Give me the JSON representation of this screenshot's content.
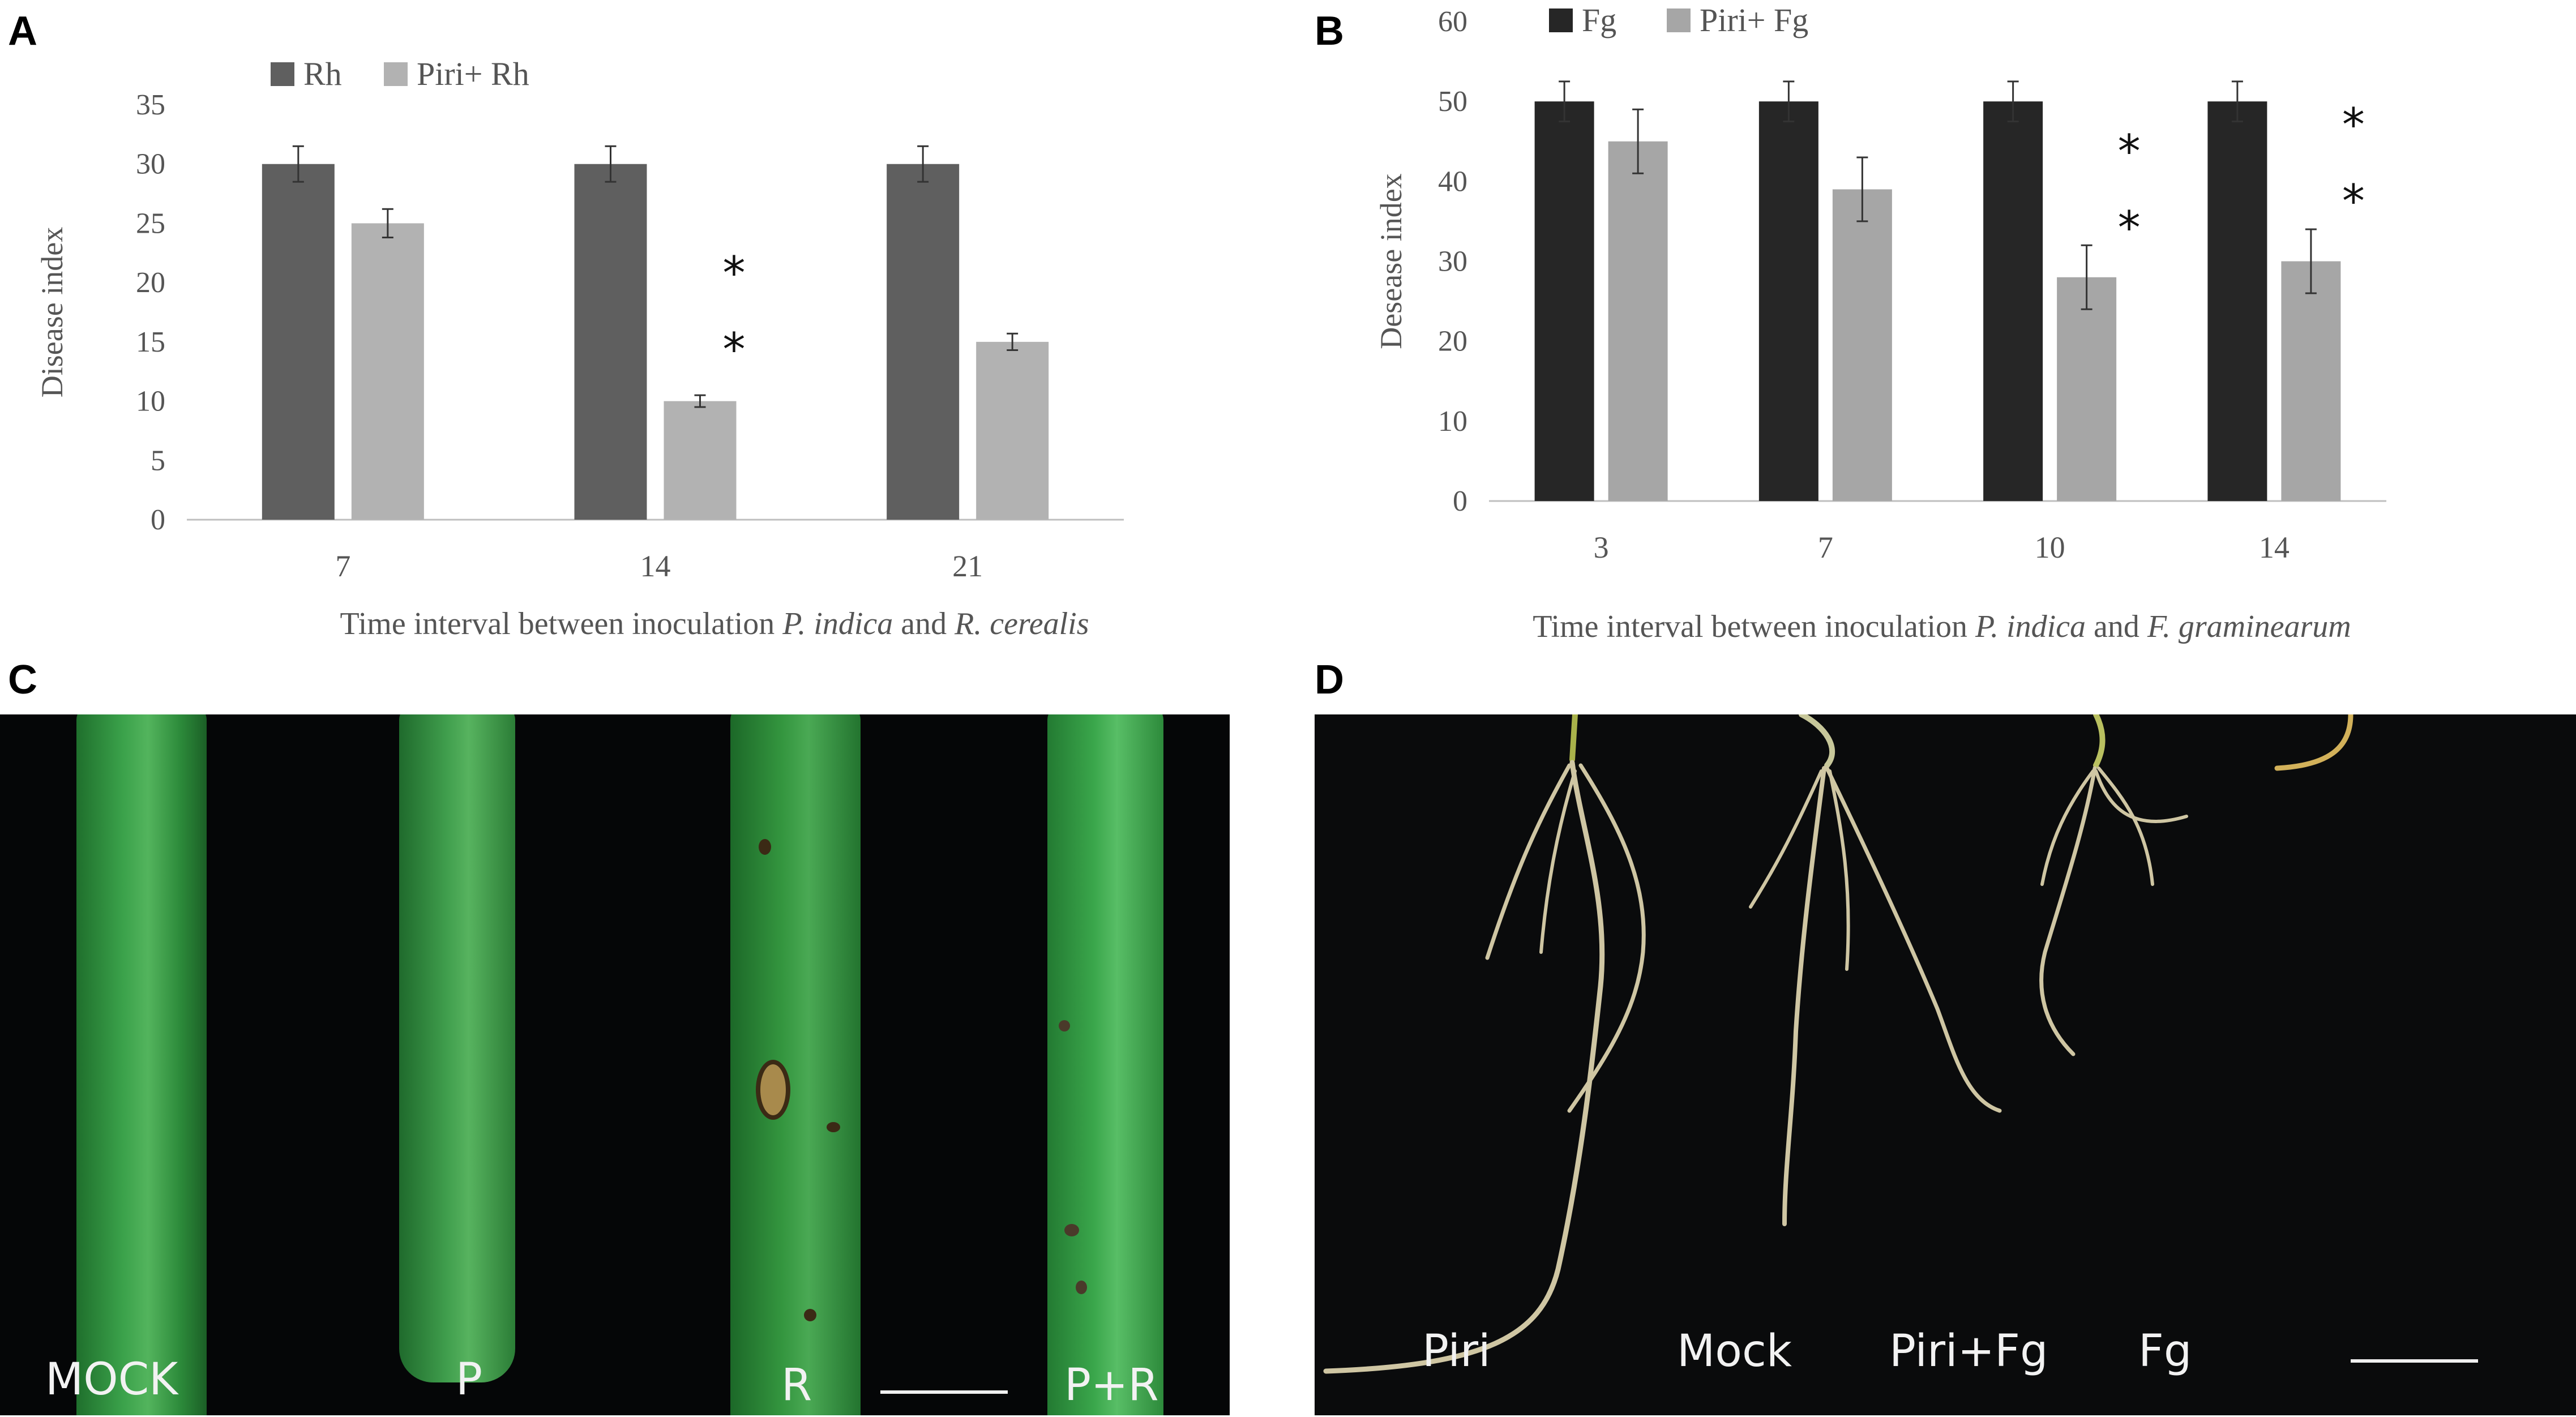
{
  "figure": {
    "panel_letters": [
      "A",
      "B",
      "C",
      "D"
    ],
    "colors": {
      "rh": "#5f5f5f",
      "piri_rh": "#b2b2b2",
      "fg": "#262626",
      "piri_fg": "#a6a6a6",
      "photo_bg": "#050607",
      "leaf_green": "#2f9a3c"
    }
  },
  "chart_data": [
    {
      "type": "bar",
      "panel": "A",
      "categories": [
        "7",
        "14",
        "21"
      ],
      "series": [
        {
          "name": "Rh",
          "values": [
            30,
            30,
            30
          ],
          "errors": [
            1.5,
            1.5,
            1.5
          ]
        },
        {
          "name": "Piri+ Rh",
          "values": [
            25,
            10,
            15
          ],
          "errors": [
            1.2,
            0.5,
            0.7
          ]
        }
      ],
      "significance": [
        {
          "category": "14",
          "marks": [
            "*",
            "*"
          ]
        }
      ],
      "ylabel": "Disease index",
      "xlabel_parts": [
        {
          "text": "Time interval between inoculation ",
          "italic": false
        },
        {
          "text": "P. indica",
          "italic": true
        },
        {
          "text": " and ",
          "italic": false
        },
        {
          "text": "R. cerealis",
          "italic": true
        }
      ],
      "ylim": [
        0,
        35
      ],
      "yticks": [
        "0",
        "5",
        "10",
        "15",
        "20",
        "25",
        "30",
        "35"
      ],
      "legend": "top-left",
      "grid": false
    },
    {
      "type": "bar",
      "panel": "B",
      "categories": [
        "3",
        "7",
        "10",
        "14"
      ],
      "series": [
        {
          "name": "Fg",
          "values": [
            50,
            50,
            50,
            50
          ],
          "errors": [
            2.5,
            2.5,
            2.5,
            2.5
          ]
        },
        {
          "name": "Piri+ Fg",
          "values": [
            45,
            39,
            28,
            30
          ],
          "errors": [
            4,
            4,
            4,
            4
          ]
        }
      ],
      "significance": [
        {
          "category": "10",
          "marks": [
            "*",
            "*"
          ]
        },
        {
          "category": "14",
          "marks": [
            "*",
            "*"
          ]
        }
      ],
      "ylabel": "Desease index",
      "xlabel_parts": [
        {
          "text": "Time interval between inoculation ",
          "italic": false
        },
        {
          "text": "P. indica",
          "italic": true
        },
        {
          "text": " and ",
          "italic": false
        },
        {
          "text": "F. graminearum",
          "italic": true
        }
      ],
      "ylim": [
        0,
        60
      ],
      "yticks": [
        "0",
        "10",
        "20",
        "30",
        "40",
        "50",
        "60"
      ],
      "legend": "top-left",
      "grid": false
    }
  ],
  "photos": {
    "c": {
      "labels": [
        "MOCK",
        "P",
        "R",
        "P+R"
      ]
    },
    "d": {
      "labels": [
        "Piri",
        "Mock",
        "Piri+Fg",
        "Fg"
      ]
    }
  }
}
